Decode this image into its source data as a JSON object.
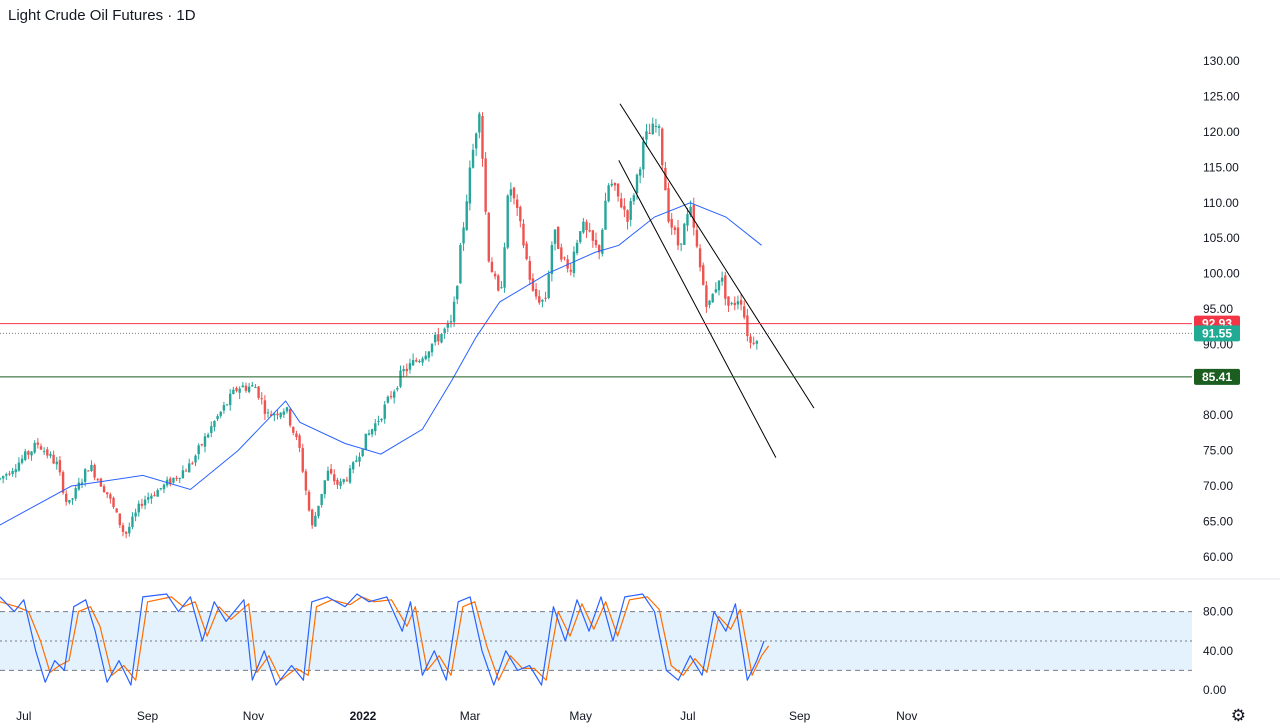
{
  "title": "Light Crude Oil Futures · 1D",
  "colors": {
    "up": "#26a69a",
    "down": "#ef5350",
    "ma": "#2962ff",
    "resistance": "#f23645",
    "support": "#1b5e20",
    "last": "#22ab94",
    "stoch_k": "#2962ff",
    "stoch_d": "#ff6d00",
    "stoch_band": "#e3f2fd",
    "channel": "#000000"
  },
  "settings_icon": "gear-icon",
  "chart_data": [
    {
      "type": "candlestick",
      "title": "Light Crude Oil Futures · 1D",
      "y_ticks": [
        "60.00",
        "65.00",
        "70.00",
        "75.00",
        "80.00",
        "85.00",
        "90.00",
        "95.00",
        "100.00",
        "105.00",
        "110.00",
        "115.00",
        "120.00",
        "125.00",
        "130.00"
      ],
      "ylim": [
        57,
        133
      ],
      "x_ticks": [
        {
          "label": "Jul",
          "t": 0.02
        },
        {
          "label": "Sep",
          "t": 0.124
        },
        {
          "label": "Nov",
          "t": 0.213
        },
        {
          "label": "2022",
          "t": 0.305
        },
        {
          "label": "Mar",
          "t": 0.395
        },
        {
          "label": "May",
          "t": 0.488
        },
        {
          "label": "Jul",
          "t": 0.578
        },
        {
          "label": "Sep",
          "t": 0.672
        },
        {
          "label": "Nov",
          "t": 0.762
        }
      ],
      "price_path": [
        [
          0.0,
          71
        ],
        [
          0.02,
          74
        ],
        [
          0.032,
          76
        ],
        [
          0.048,
          73
        ],
        [
          0.057,
          67
        ],
        [
          0.075,
          73
        ],
        [
          0.09,
          69
        ],
        [
          0.105,
          63
        ],
        [
          0.12,
          68
        ],
        [
          0.138,
          70
        ],
        [
          0.16,
          73
        ],
        [
          0.18,
          79
        ],
        [
          0.2,
          84
        ],
        [
          0.215,
          84
        ],
        [
          0.225,
          80
        ],
        [
          0.24,
          81
        ],
        [
          0.252,
          75
        ],
        [
          0.262,
          64
        ],
        [
          0.275,
          72
        ],
        [
          0.285,
          70
        ],
        [
          0.295,
          72
        ],
        [
          0.305,
          76
        ],
        [
          0.32,
          80
        ],
        [
          0.338,
          86
        ],
        [
          0.352,
          88
        ],
        [
          0.368,
          91
        ],
        [
          0.38,
          93
        ],
        [
          0.393,
          112
        ],
        [
          0.403,
          124
        ],
        [
          0.41,
          103
        ],
        [
          0.42,
          96
        ],
        [
          0.428,
          113
        ],
        [
          0.438,
          106
        ],
        [
          0.448,
          97
        ],
        [
          0.458,
          96
        ],
        [
          0.465,
          106
        ],
        [
          0.478,
          100
        ],
        [
          0.488,
          107
        ],
        [
          0.503,
          103
        ],
        [
          0.512,
          113
        ],
        [
          0.528,
          108
        ],
        [
          0.542,
          119
        ],
        [
          0.553,
          121
        ],
        [
          0.562,
          108
        ],
        [
          0.57,
          104
        ],
        [
          0.58,
          109
        ],
        [
          0.588,
          101
        ],
        [
          0.595,
          95
        ],
        [
          0.605,
          100
        ],
        [
          0.613,
          95
        ],
        [
          0.622,
          97
        ],
        [
          0.63,
          90
        ],
        [
          0.637,
          91.55
        ]
      ],
      "ma_path": [
        [
          0.0,
          64.5
        ],
        [
          0.06,
          70
        ],
        [
          0.12,
          71.5
        ],
        [
          0.16,
          69.5
        ],
        [
          0.2,
          75
        ],
        [
          0.24,
          82
        ],
        [
          0.252,
          79
        ],
        [
          0.29,
          76
        ],
        [
          0.32,
          74.5
        ],
        [
          0.355,
          78
        ],
        [
          0.38,
          85
        ],
        [
          0.4,
          91
        ],
        [
          0.42,
          96
        ],
        [
          0.46,
          100
        ],
        [
          0.5,
          103
        ],
        [
          0.52,
          104
        ],
        [
          0.55,
          108
        ],
        [
          0.58,
          110
        ],
        [
          0.61,
          108
        ],
        [
          0.64,
          104
        ]
      ],
      "channel_lines": [
        {
          "from": [
            0.521,
            124
          ],
          "to": [
            0.684,
            81
          ]
        },
        {
          "from": [
            0.52,
            116
          ],
          "to": [
            0.652,
            74
          ]
        }
      ],
      "horizontal_levels": [
        {
          "value": 92.93,
          "label": "92.93",
          "kind": "resistance"
        },
        {
          "value": 85.41,
          "label": "85.41",
          "kind": "support"
        }
      ],
      "last_price": {
        "value": 91.55,
        "label": "91.55"
      }
    },
    {
      "type": "line",
      "indicator": "stochastic",
      "y_ticks": [
        "0.00",
        "40.00",
        "80.00"
      ],
      "ylim": [
        0,
        100
      ],
      "band": [
        20,
        80
      ],
      "mid_line": 50,
      "k_path": [
        [
          0.0,
          95
        ],
        [
          0.012,
          80
        ],
        [
          0.02,
          92
        ],
        [
          0.03,
          40
        ],
        [
          0.038,
          8
        ],
        [
          0.046,
          30
        ],
        [
          0.054,
          20
        ],
        [
          0.062,
          85
        ],
        [
          0.072,
          92
        ],
        [
          0.08,
          60
        ],
        [
          0.09,
          8
        ],
        [
          0.1,
          30
        ],
        [
          0.11,
          5
        ],
        [
          0.12,
          95
        ],
        [
          0.14,
          98
        ],
        [
          0.15,
          80
        ],
        [
          0.16,
          95
        ],
        [
          0.17,
          50
        ],
        [
          0.18,
          90
        ],
        [
          0.19,
          70
        ],
        [
          0.205,
          92
        ],
        [
          0.212,
          10
        ],
        [
          0.222,
          40
        ],
        [
          0.232,
          5
        ],
        [
          0.245,
          25
        ],
        [
          0.255,
          10
        ],
        [
          0.262,
          90
        ],
        [
          0.275,
          95
        ],
        [
          0.29,
          85
        ],
        [
          0.3,
          98
        ],
        [
          0.31,
          90
        ],
        [
          0.325,
          95
        ],
        [
          0.338,
          60
        ],
        [
          0.345,
          90
        ],
        [
          0.355,
          15
        ],
        [
          0.365,
          40
        ],
        [
          0.375,
          10
        ],
        [
          0.385,
          90
        ],
        [
          0.395,
          95
        ],
        [
          0.405,
          40
        ],
        [
          0.415,
          5
        ],
        [
          0.425,
          40
        ],
        [
          0.435,
          20
        ],
        [
          0.445,
          25
        ],
        [
          0.455,
          5
        ],
        [
          0.465,
          85
        ],
        [
          0.475,
          50
        ],
        [
          0.485,
          92
        ],
        [
          0.495,
          60
        ],
        [
          0.505,
          95
        ],
        [
          0.515,
          50
        ],
        [
          0.525,
          95
        ],
        [
          0.54,
          98
        ],
        [
          0.55,
          80
        ],
        [
          0.56,
          20
        ],
        [
          0.57,
          10
        ],
        [
          0.58,
          35
        ],
        [
          0.59,
          15
        ],
        [
          0.6,
          80
        ],
        [
          0.61,
          60
        ],
        [
          0.618,
          88
        ],
        [
          0.628,
          10
        ],
        [
          0.636,
          30
        ],
        [
          0.642,
          50
        ]
      ],
      "d_path": [
        [
          0.0,
          90
        ],
        [
          0.014,
          85
        ],
        [
          0.024,
          80
        ],
        [
          0.034,
          50
        ],
        [
          0.042,
          18
        ],
        [
          0.05,
          25
        ],
        [
          0.058,
          30
        ],
        [
          0.066,
          80
        ],
        [
          0.076,
          85
        ],
        [
          0.084,
          65
        ],
        [
          0.094,
          15
        ],
        [
          0.104,
          25
        ],
        [
          0.114,
          10
        ],
        [
          0.124,
          90
        ],
        [
          0.144,
          95
        ],
        [
          0.154,
          85
        ],
        [
          0.164,
          90
        ],
        [
          0.174,
          55
        ],
        [
          0.184,
          85
        ],
        [
          0.194,
          72
        ],
        [
          0.209,
          88
        ],
        [
          0.216,
          18
        ],
        [
          0.226,
          35
        ],
        [
          0.236,
          10
        ],
        [
          0.249,
          22
        ],
        [
          0.259,
          15
        ],
        [
          0.266,
          85
        ],
        [
          0.279,
          92
        ],
        [
          0.294,
          87
        ],
        [
          0.304,
          95
        ],
        [
          0.314,
          90
        ],
        [
          0.329,
          92
        ],
        [
          0.342,
          65
        ],
        [
          0.349,
          85
        ],
        [
          0.359,
          20
        ],
        [
          0.369,
          35
        ],
        [
          0.379,
          15
        ],
        [
          0.389,
          85
        ],
        [
          0.399,
          90
        ],
        [
          0.409,
          45
        ],
        [
          0.419,
          10
        ],
        [
          0.429,
          35
        ],
        [
          0.439,
          22
        ],
        [
          0.449,
          22
        ],
        [
          0.459,
          10
        ],
        [
          0.469,
          80
        ],
        [
          0.479,
          55
        ],
        [
          0.489,
          88
        ],
        [
          0.499,
          62
        ],
        [
          0.509,
          90
        ],
        [
          0.519,
          55
        ],
        [
          0.529,
          92
        ],
        [
          0.544,
          95
        ],
        [
          0.554,
          82
        ],
        [
          0.564,
          25
        ],
        [
          0.574,
          15
        ],
        [
          0.584,
          32
        ],
        [
          0.594,
          18
        ],
        [
          0.604,
          75
        ],
        [
          0.614,
          62
        ],
        [
          0.622,
          82
        ],
        [
          0.632,
          15
        ],
        [
          0.64,
          35
        ],
        [
          0.646,
          45
        ]
      ]
    }
  ]
}
